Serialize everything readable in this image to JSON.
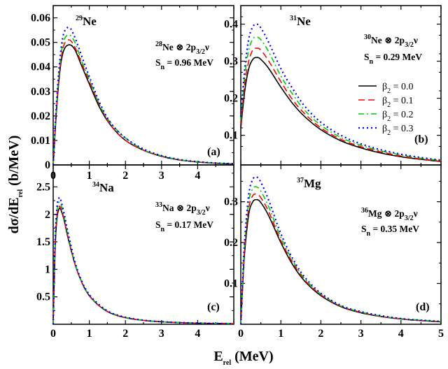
{
  "figure": {
    "ylabel": {
      "main": "dσ/dE",
      "sub": "rel",
      "tail": " (b/MeV)"
    },
    "xlabel": {
      "main": "E",
      "sub": "rel",
      "tail": " (MeV)"
    }
  },
  "legend": {
    "entries": [
      {
        "beta": "β",
        "sub": "2",
        "value": " = 0.0",
        "color": "#000000",
        "dash": "solid"
      },
      {
        "beta": "β",
        "sub": "2",
        "value": " = 0.1",
        "color": "#ff0000",
        "dash": "dash"
      },
      {
        "beta": "β",
        "sub": "2",
        "value": " = 0.2",
        "color": "#00cc00",
        "dash": "dashdot"
      },
      {
        "beta": "β",
        "sub": "2",
        "value": " = 0.3",
        "color": "#0000ff",
        "dash": "dot"
      }
    ]
  },
  "panels": [
    {
      "tag": "(a)",
      "nucleus": {
        "mass": "29",
        "symbol": "Ne"
      },
      "config": {
        "core_mass": "28",
        "core": "Ne",
        "orbital": " ⊗ 2p",
        "j": "3/2",
        "nu": "ν"
      },
      "sn": {
        "label": "S",
        "sub": "n",
        "value": " = 0.96 MeV"
      },
      "yticks": [
        "0",
        "0.01",
        "0.02",
        "0.03",
        "0.04",
        "0.05",
        "0.06"
      ],
      "xticks": [
        "0",
        "1",
        "2",
        "3",
        "4",
        ""
      ]
    },
    {
      "tag": "(b)",
      "nucleus": {
        "mass": "31",
        "symbol": "Ne"
      },
      "config": {
        "core_mass": "30",
        "core": "Ne",
        "orbital": " ⊗ 2p",
        "j": "3/2",
        "nu": "ν"
      },
      "sn": {
        "label": "S",
        "sub": "n",
        "value": " = 0.29 MeV"
      },
      "yticks": [
        "0.1",
        "0.2",
        "0.3",
        "0.4"
      ],
      "xticks": []
    },
    {
      "tag": "(c)",
      "nucleus": {
        "mass": "34",
        "symbol": "Na"
      },
      "config": {
        "core_mass": "33",
        "core": "Na",
        "orbital": " ⊗ 2p",
        "j": "3/2",
        "nu": "ν"
      },
      "sn": {
        "label": "S",
        "sub": "n",
        "value": " = 0.17 MeV"
      },
      "yticks": [
        "0.5",
        "1",
        "1.5",
        "2",
        "2.5"
      ],
      "xticks": [
        "0",
        "1",
        "2",
        "3",
        "4"
      ]
    },
    {
      "tag": "(d)",
      "nucleus": {
        "mass": "37",
        "symbol": "Mg"
      },
      "config": {
        "core_mass": "36",
        "core": "Mg",
        "orbital": " ⊗ 2p",
        "j": "3/2",
        "nu": "ν"
      },
      "sn": {
        "label": "S",
        "sub": "n",
        "value": " = 0.35 MeV"
      },
      "yticks": [
        "0.1",
        "0.2",
        "0.3"
      ],
      "xticks": [
        "0",
        "1",
        "2",
        "3",
        "4",
        "5"
      ]
    }
  ],
  "chart_data": [
    {
      "type": "line",
      "panel": "(a)",
      "xlim": [
        0,
        5
      ],
      "ylim": [
        0,
        0.065
      ],
      "x": [
        0,
        0.1,
        0.2,
        0.3,
        0.45,
        0.6,
        0.8,
        1.0,
        1.3,
        1.6,
        2.0,
        2.5,
        3.0,
        3.5,
        4.0,
        4.5,
        5.0
      ],
      "series": [
        {
          "name": "β2 = 0.0",
          "values": [
            0,
            0.024,
            0.04,
            0.047,
            0.049,
            0.047,
            0.04,
            0.033,
            0.023,
            0.016,
            0.01,
            0.006,
            0.0035,
            0.002,
            0.0012,
            0.0007,
            0.0004
          ]
        },
        {
          "name": "β2 = 0.1",
          "values": [
            0,
            0.025,
            0.041,
            0.049,
            0.051,
            0.048,
            0.041,
            0.034,
            0.024,
            0.016,
            0.01,
            0.006,
            0.0036,
            0.002,
            0.0012,
            0.0007,
            0.0004
          ]
        },
        {
          "name": "β2 = 0.2",
          "values": [
            0,
            0.026,
            0.043,
            0.051,
            0.053,
            0.05,
            0.042,
            0.035,
            0.024,
            0.017,
            0.011,
            0.0062,
            0.0037,
            0.0021,
            0.0013,
            0.0008,
            0.0005
          ]
        },
        {
          "name": "β2 = 0.3",
          "values": [
            0,
            0.027,
            0.045,
            0.054,
            0.056,
            0.052,
            0.044,
            0.036,
            0.025,
            0.017,
            0.011,
            0.0065,
            0.0038,
            0.0022,
            0.0013,
            0.0008,
            0.0005
          ]
        }
      ]
    },
    {
      "type": "line",
      "panel": "(b)",
      "xlim": [
        0,
        5
      ],
      "ylim": [
        0.02,
        0.45
      ],
      "x": [
        0,
        0.1,
        0.2,
        0.3,
        0.4,
        0.5,
        0.7,
        1.0,
        1.3,
        1.6,
        2.0,
        2.5,
        3.0,
        3.5,
        4.0,
        4.5,
        5.0
      ],
      "series": [
        {
          "name": "β2 = 0.0",
          "values": [
            0.12,
            0.22,
            0.28,
            0.305,
            0.31,
            0.305,
            0.28,
            0.23,
            0.185,
            0.15,
            0.115,
            0.085,
            0.066,
            0.052,
            0.042,
            0.035,
            0.029
          ]
        },
        {
          "name": "β2 = 0.1",
          "values": [
            0.13,
            0.24,
            0.3,
            0.33,
            0.335,
            0.33,
            0.3,
            0.245,
            0.195,
            0.158,
            0.12,
            0.089,
            0.069,
            0.055,
            0.044,
            0.036,
            0.03
          ]
        },
        {
          "name": "β2 = 0.2",
          "values": [
            0.14,
            0.26,
            0.33,
            0.36,
            0.365,
            0.358,
            0.325,
            0.26,
            0.21,
            0.167,
            0.127,
            0.094,
            0.073,
            0.058,
            0.047,
            0.038,
            0.032
          ]
        },
        {
          "name": "β2 = 0.3",
          "values": [
            0.15,
            0.28,
            0.36,
            0.393,
            0.4,
            0.39,
            0.35,
            0.28,
            0.225,
            0.178,
            0.135,
            0.1,
            0.077,
            0.061,
            0.049,
            0.04,
            0.033
          ]
        }
      ]
    },
    {
      "type": "line",
      "panel": "(c)",
      "xlim": [
        0,
        5
      ],
      "ylim": [
        0,
        2.9
      ],
      "x": [
        0,
        0.05,
        0.1,
        0.15,
        0.2,
        0.3,
        0.4,
        0.6,
        0.8,
        1.0,
        1.3,
        1.6,
        2.0,
        2.5,
        3.0,
        3.5,
        4.0,
        5.0
      ],
      "series": [
        {
          "name": "β2 = 0.0",
          "values": [
            0,
            1.3,
            1.9,
            2.08,
            2.1,
            1.9,
            1.6,
            1.1,
            0.75,
            0.52,
            0.32,
            0.2,
            0.12,
            0.07,
            0.045,
            0.03,
            0.02,
            0.01
          ]
        },
        {
          "name": "β2 = 0.1",
          "values": [
            0,
            1.35,
            1.95,
            2.12,
            2.13,
            1.92,
            1.62,
            1.1,
            0.75,
            0.52,
            0.32,
            0.2,
            0.12,
            0.07,
            0.045,
            0.03,
            0.02,
            0.01
          ]
        },
        {
          "name": "β2 = 0.2",
          "values": [
            0,
            1.4,
            2.02,
            2.2,
            2.2,
            1.97,
            1.65,
            1.12,
            0.76,
            0.53,
            0.33,
            0.21,
            0.125,
            0.072,
            0.046,
            0.031,
            0.021,
            0.011
          ]
        },
        {
          "name": "β2 = 0.3",
          "values": [
            0,
            1.45,
            2.1,
            2.28,
            2.28,
            2.02,
            1.7,
            1.14,
            0.77,
            0.54,
            0.34,
            0.21,
            0.128,
            0.074,
            0.047,
            0.032,
            0.022,
            0.011
          ]
        }
      ]
    },
    {
      "type": "line",
      "panel": "(d)",
      "xlim": [
        0,
        5
      ],
      "ylim": [
        0,
        0.39
      ],
      "x": [
        0,
        0.05,
        0.1,
        0.2,
        0.3,
        0.4,
        0.5,
        0.7,
        1.0,
        1.3,
        1.6,
        2.0,
        2.5,
        3.0,
        3.5,
        4.0,
        4.5,
        5.0
      ],
      "series": [
        {
          "name": "β2 = 0.0",
          "values": [
            0,
            0.1,
            0.18,
            0.27,
            0.3,
            0.305,
            0.298,
            0.265,
            0.2,
            0.145,
            0.105,
            0.07,
            0.043,
            0.028,
            0.019,
            0.013,
            0.009,
            0.006
          ]
        },
        {
          "name": "β2 = 0.1",
          "values": [
            0,
            0.105,
            0.19,
            0.285,
            0.315,
            0.318,
            0.31,
            0.275,
            0.205,
            0.15,
            0.108,
            0.072,
            0.044,
            0.029,
            0.019,
            0.013,
            0.009,
            0.006
          ]
        },
        {
          "name": "β2 = 0.2",
          "values": [
            0,
            0.11,
            0.2,
            0.3,
            0.332,
            0.336,
            0.326,
            0.287,
            0.213,
            0.155,
            0.111,
            0.074,
            0.045,
            0.03,
            0.02,
            0.014,
            0.01,
            0.007
          ]
        },
        {
          "name": "β2 = 0.3",
          "values": [
            0,
            0.115,
            0.21,
            0.318,
            0.355,
            0.36,
            0.348,
            0.303,
            0.222,
            0.16,
            0.115,
            0.076,
            0.046,
            0.031,
            0.021,
            0.014,
            0.01,
            0.007
          ]
        }
      ]
    }
  ]
}
